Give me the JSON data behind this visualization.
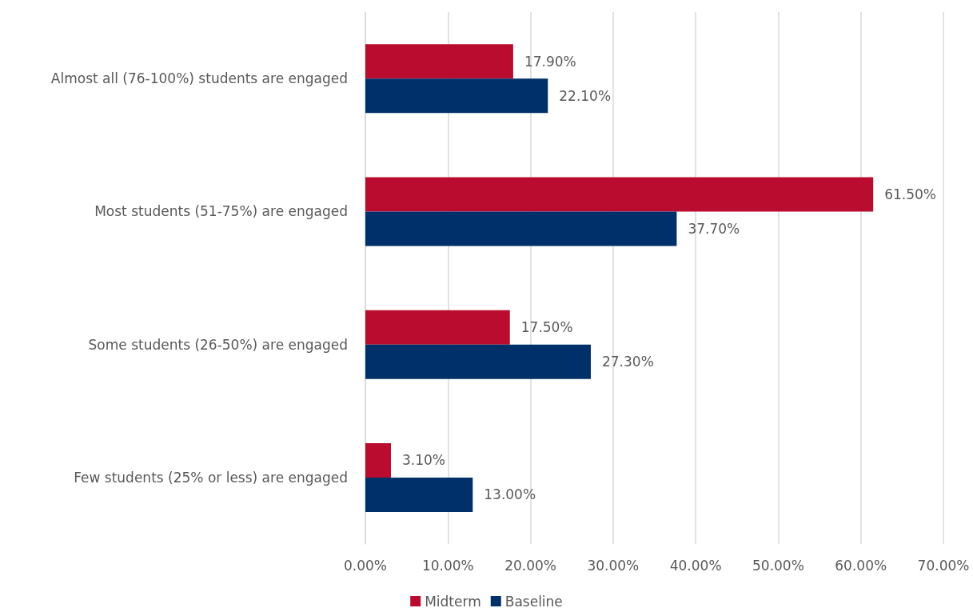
{
  "chart_data": {
    "type": "bar",
    "orientation": "horizontal",
    "categories": [
      "Almost all (76-100%) students are engaged",
      "Most students (51-75%) are engaged",
      "Some students (26-50%) are engaged",
      "Few students (25% or less) are engaged"
    ],
    "series": [
      {
        "name": "Midterm",
        "color": "#ba0c2f",
        "values": [
          17.9,
          61.5,
          17.5,
          3.1
        ],
        "value_labels": [
          "17.90%",
          "61.50%",
          "17.50%",
          "3.10%"
        ]
      },
      {
        "name": "Baseline",
        "color": "#003069",
        "values": [
          22.1,
          37.7,
          27.3,
          13.0
        ],
        "value_labels": [
          "22.10%",
          "37.70%",
          "27.30%",
          "13.00%"
        ]
      }
    ],
    "xlim": [
      0,
      70
    ],
    "xticks": [
      {
        "value": 0,
        "label": "0.00%"
      },
      {
        "value": 10,
        "label": "10.00%"
      },
      {
        "value": 20,
        "label": "20.00%"
      },
      {
        "value": 30,
        "label": "30.00%"
      },
      {
        "value": 40,
        "label": "40.00%"
      },
      {
        "value": 50,
        "label": "50.00%"
      },
      {
        "value": 60,
        "label": "60.00%"
      },
      {
        "value": 70,
        "label": "70.00%"
      }
    ],
    "grid": "x",
    "legend": "bottom"
  }
}
